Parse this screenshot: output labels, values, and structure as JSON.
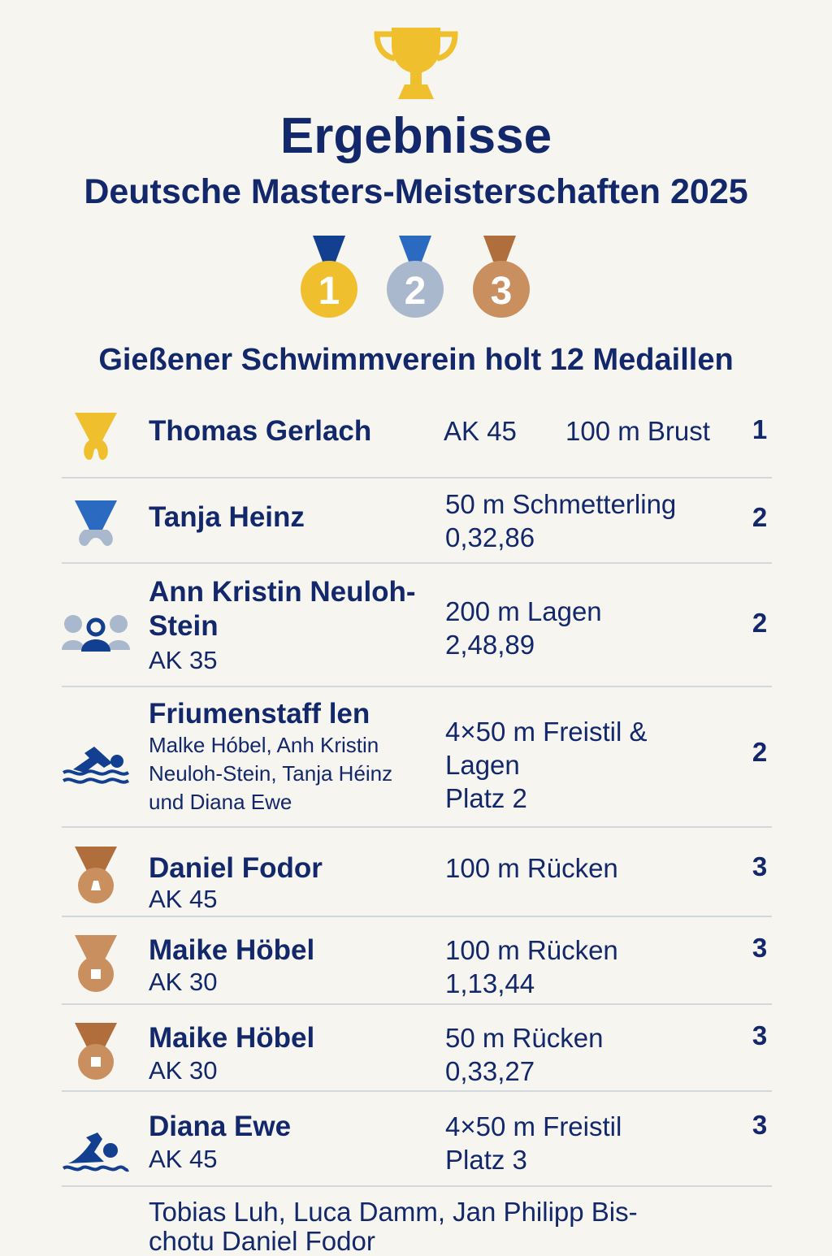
{
  "header": {
    "title": "Ergebnisse",
    "subtitle": "Deutsche Masters-Meisterschaften 2025",
    "trophy_icon": "trophy-icon",
    "medals": [
      {
        "label": "1",
        "color": "#f0bf2e",
        "ribbon": "#123f8f"
      },
      {
        "label": "2",
        "color": "#a9b8cc",
        "ribbon": "#2a6ac0"
      },
      {
        "label": "3",
        "color": "#c98f5e",
        "ribbon": "#b06e3c"
      }
    ]
  },
  "headline": "Gießener Schwimmverein holt 12 Medaillen",
  "colors": {
    "text": "#12286a",
    "gold": "#f0bf2e",
    "silver": "#a9b8cc",
    "bronze": "#c98f5e",
    "background": "#f7f5f0"
  },
  "results": [
    {
      "icon": "gold-medal-icon",
      "name": "Thomas Gerlach",
      "age": "AK 45",
      "event": "100 m Brust",
      "rank": "1"
    },
    {
      "icon": "silver-medal-icon",
      "name": "Tanja Heinz",
      "event": "50 m Schmetterling",
      "time": "0,32,86",
      "rank": "2"
    },
    {
      "icon": "group-icon",
      "name": "Ann Kristin Neuloh-Stein",
      "age": "AK 35",
      "event": "200 m Lagen",
      "time": "2,48,89",
      "rank": "2"
    },
    {
      "icon": "swimmer-icon",
      "name": "Friumenstaff len",
      "members": "Malke Hóbel, Anh Kristin Neuloh-Stein, Tanja Héinz und Diana Ewe",
      "event": "4×50 m Freistil & Lagen",
      "time": "Platz 2",
      "rank": "2"
    },
    {
      "icon": "bronze-medal-icon",
      "name": "Daniel Fodor",
      "age": "AK 45",
      "event": "100 m Rücken",
      "rank": "3"
    },
    {
      "icon": "bronze-medal-icon",
      "name": "Maike Höbel",
      "age": "AK 30",
      "event": "100 m Rücken",
      "time": "1,13,44",
      "rank": "3"
    },
    {
      "icon": "bronze-medal-icon",
      "name": "Maike Höbel",
      "age": "AK 30",
      "event": "50 m Rücken",
      "time": "0,33,27",
      "rank": "3"
    },
    {
      "icon": "swimmer-icon",
      "name": "Diana Ewe",
      "age": "AK 45",
      "event": "4×50 m Freistil",
      "time": "Platz 3",
      "rank": "3"
    }
  ],
  "footer_text": "Tobias Luh, Luca Damm, Jan Philipp Bis-chotu Daniel Fodor"
}
